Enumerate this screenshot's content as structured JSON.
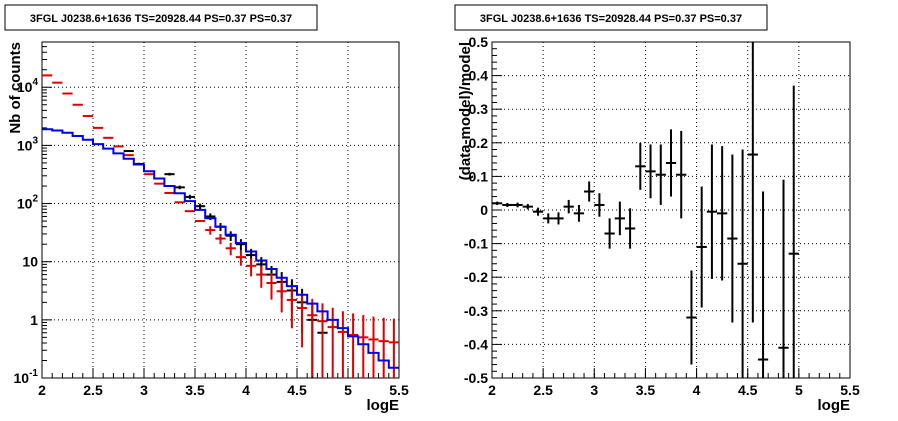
{
  "chart_data": [
    {
      "type": "line",
      "title": "3FGL J0238.6+1636 TS=20928.44 PS=0.37 PS=0.37",
      "xlabel": "logE",
      "ylabel": "Nb of counts",
      "xlim": [
        2,
        5.5
      ],
      "ylim": [
        0.1,
        60000
      ],
      "yscale": "log",
      "grid": true,
      "x_ticks": [
        "2",
        "2.5",
        "3",
        "3.5",
        "4",
        "4.5",
        "5",
        "5.5"
      ],
      "y_ticks": [
        "10^{-1}",
        "1",
        "10",
        "10^{2}",
        "10^{3}",
        "10^{4}"
      ],
      "bin_edges": [
        2.0,
        2.1,
        2.2,
        2.3,
        2.4,
        2.5,
        2.6,
        2.7,
        2.8,
        2.9,
        3.0,
        3.1,
        3.2,
        3.3,
        3.4,
        3.5,
        3.6,
        3.7,
        3.8,
        3.9,
        4.0,
        4.1,
        4.2,
        4.3,
        4.4,
        4.5,
        4.6,
        4.7,
        4.8,
        4.9,
        5.0,
        5.1,
        5.2,
        5.3,
        5.4,
        5.5
      ],
      "series": [
        {
          "color": "#dd0000",
          "style": "errorbar",
          "x": [
            2.05,
            2.15,
            2.25,
            2.35,
            2.45,
            2.55,
            2.65,
            2.75,
            2.85,
            2.95,
            3.05,
            3.15,
            3.25,
            3.35,
            3.45,
            3.55,
            3.65,
            3.75,
            3.85,
            3.95,
            4.05,
            4.15,
            4.25,
            4.35,
            4.45,
            4.55,
            4.65,
            4.75,
            4.85,
            4.95,
            5.05,
            5.15,
            5.25,
            5.35,
            5.45
          ],
          "values": [
            16000,
            12000,
            7800,
            5000,
            3200,
            2000,
            1350,
            960,
            680,
            470,
            320,
            220,
            152,
            105,
            74,
            50,
            35,
            25,
            17,
            12,
            8.5,
            6,
            4.3,
            3.1,
            2.2,
            1.6,
            1.2,
            0.95,
            0.75,
            0.62,
            0.55,
            0.5,
            0.46,
            0.43,
            0.41
          ]
        },
        {
          "color": "#0000ee",
          "style": "step",
          "values": [
            1900,
            1800,
            1650,
            1450,
            1250,
            1050,
            880,
            730,
            590,
            470,
            360,
            270,
            200,
            150,
            110,
            78,
            56,
            40,
            29,
            21,
            15,
            10.5,
            7.5,
            5.3,
            3.8,
            2.7,
            1.9,
            1.4,
            1.0,
            0.72,
            0.52,
            0.38,
            0.27,
            0.2,
            0.15
          ]
        },
        {
          "color": "#000000",
          "style": "errorbar",
          "x": [
            2.85,
            2.95,
            3.25,
            3.35,
            3.45,
            3.55,
            3.65,
            3.75,
            3.85,
            3.95,
            4.05,
            4.15,
            4.25,
            4.35,
            4.45,
            4.55,
            4.65,
            4.75
          ],
          "values": [
            800,
            480,
            320,
            190,
            130,
            90,
            60,
            40,
            28,
            20,
            13,
            9,
            6,
            4.5,
            3.2,
            2.0,
            1.0,
            0.6
          ]
        }
      ]
    },
    {
      "type": "scatter",
      "title": "3FGL J0238.6+1636 TS=20928.44 PS=0.37 PS=0.37",
      "xlabel": "logE",
      "ylabel": "(data-model)/model",
      "xlim": [
        2,
        5.5
      ],
      "ylim": [
        -0.5,
        0.5
      ],
      "grid": true,
      "x_ticks": [
        "2",
        "2.5",
        "3",
        "3.5",
        "4",
        "4.5",
        "5",
        "5.5"
      ],
      "y_ticks": [
        "-0.5",
        "-0.4",
        "-0.3",
        "-0.2",
        "-0.1",
        "0",
        "0.1",
        "0.2",
        "0.3",
        "0.4",
        "0.5"
      ],
      "series": [
        {
          "color": "#000000",
          "x": [
            2.05,
            2.15,
            2.25,
            2.35,
            2.45,
            2.55,
            2.65,
            2.75,
            2.85,
            2.95,
            3.05,
            3.15,
            3.25,
            3.35,
            3.45,
            3.55,
            3.65,
            3.75,
            3.85,
            3.95,
            4.05,
            4.15,
            4.25,
            4.35,
            4.45,
            4.55,
            4.65,
            4.85,
            4.95
          ],
          "values": [
            0.02,
            0.015,
            0.015,
            0.01,
            -0.005,
            -0.025,
            -0.025,
            0.01,
            -0.01,
            0.055,
            0.015,
            -0.07,
            -0.025,
            -0.055,
            0.13,
            0.115,
            0.105,
            0.14,
            0.105,
            -0.32,
            -0.11,
            -0.005,
            -0.01,
            -0.085,
            -0.16,
            0.165,
            -0.445,
            -0.41,
            -0.13
          ],
          "err_lo": [
            0.005,
            0.006,
            0.007,
            0.008,
            0.012,
            0.015,
            0.018,
            0.02,
            0.025,
            0.03,
            0.035,
            0.045,
            0.05,
            0.06,
            0.07,
            0.08,
            0.09,
            0.1,
            0.13,
            0.14,
            0.18,
            0.2,
            0.2,
            0.25,
            0.34,
            0.5,
            0.5,
            0.5,
            0.5
          ],
          "err_hi": [
            0.005,
            0.006,
            0.007,
            0.008,
            0.012,
            0.015,
            0.018,
            0.02,
            0.025,
            0.03,
            0.035,
            0.045,
            0.05,
            0.06,
            0.07,
            0.08,
            0.09,
            0.1,
            0.13,
            0.14,
            0.18,
            0.2,
            0.2,
            0.25,
            0.34,
            0.4,
            0.5,
            0.5,
            0.5
          ]
        }
      ]
    }
  ]
}
